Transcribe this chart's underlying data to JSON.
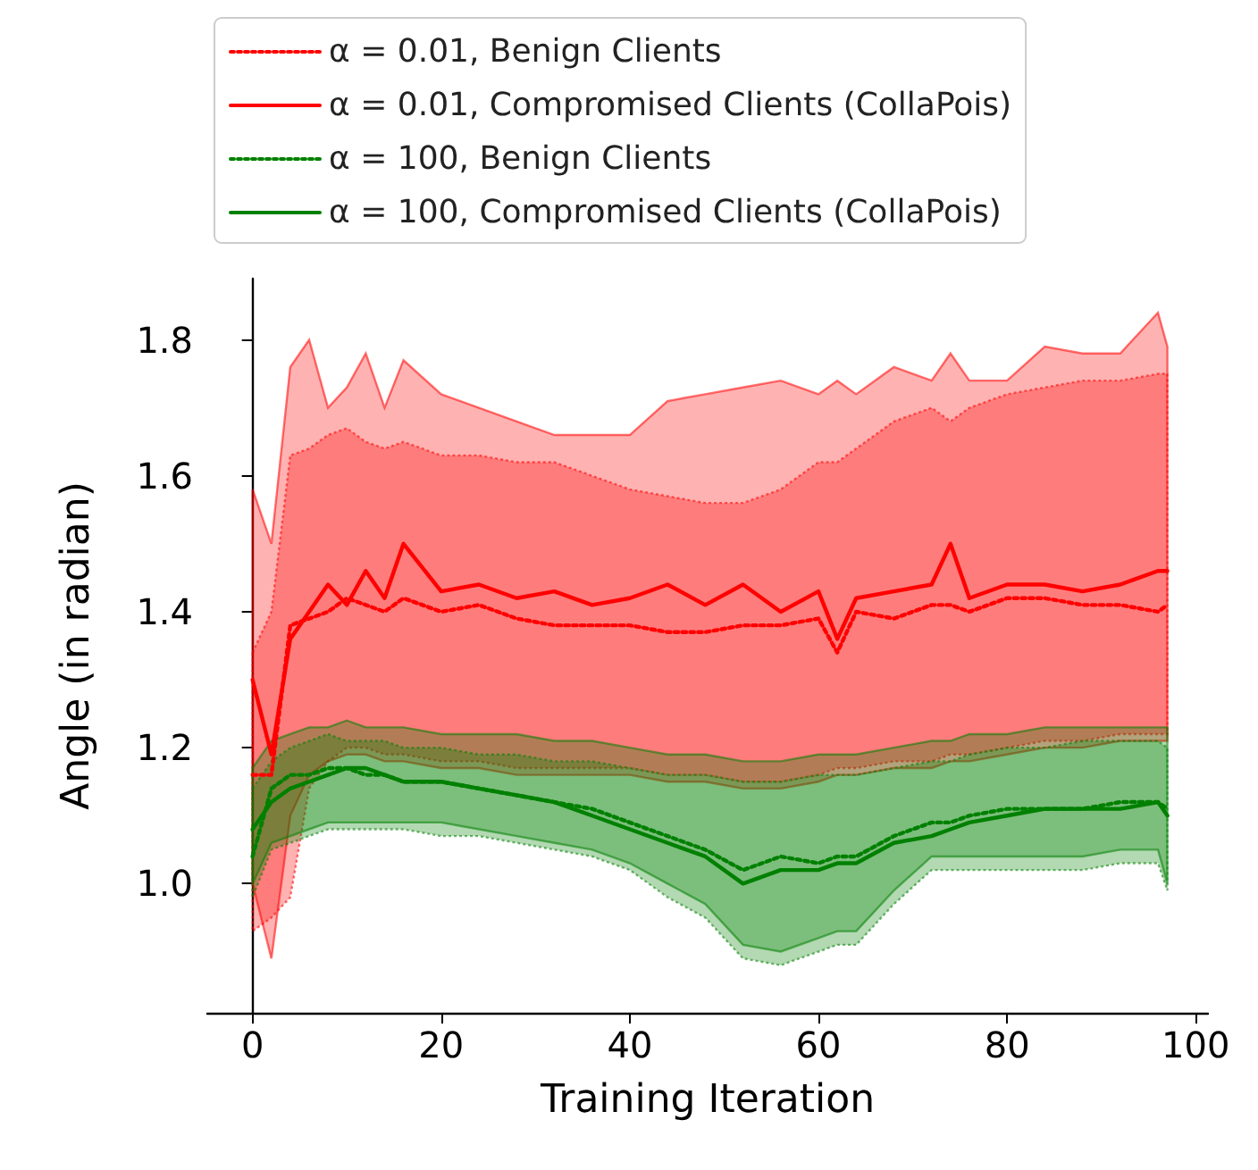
{
  "chart_data": {
    "type": "line",
    "xlabel": "Training Iteration",
    "ylabel": "Angle (in radian)",
    "x": [
      0,
      2,
      4,
      6,
      8,
      10,
      12,
      14,
      16,
      20,
      24,
      28,
      32,
      36,
      40,
      44,
      48,
      52,
      56,
      60,
      62,
      64,
      68,
      72,
      74,
      76,
      80,
      84,
      88,
      92,
      96,
      97
    ],
    "xlim": [
      -4.8,
      101.3
    ],
    "ylim": [
      0.81,
      1.89
    ],
    "xticks": [
      0,
      20,
      40,
      60,
      80,
      100
    ],
    "yticks": [
      {
        "value": 1,
        "label": "1.0"
      },
      1.2,
      1.4,
      1.6,
      1.8
    ],
    "grid": false,
    "legend": "top",
    "marker": "none",
    "series": [
      {
        "name": "α = 0.01, Benign Clients",
        "color": "#ff0000",
        "line_style": "dotted",
        "values": [
          1.16,
          1.16,
          1.38,
          1.39,
          1.4,
          1.42,
          1.41,
          1.4,
          1.42,
          1.4,
          1.41,
          1.39,
          1.38,
          1.38,
          1.38,
          1.37,
          1.37,
          1.38,
          1.38,
          1.39,
          1.34,
          1.4,
          1.39,
          1.41,
          1.41,
          1.4,
          1.42,
          1.42,
          1.41,
          1.41,
          1.4,
          1.41
        ],
        "lower": [
          0.93,
          0.95,
          0.98,
          1.14,
          1.18,
          1.2,
          1.2,
          1.19,
          1.19,
          1.18,
          1.18,
          1.17,
          1.17,
          1.17,
          1.17,
          1.16,
          1.16,
          1.15,
          1.15,
          1.16,
          1.17,
          1.17,
          1.18,
          1.18,
          1.19,
          1.19,
          1.2,
          1.21,
          1.21,
          1.22,
          1.22,
          1.22
        ],
        "upper": [
          1.34,
          1.4,
          1.63,
          1.64,
          1.66,
          1.67,
          1.65,
          1.64,
          1.65,
          1.63,
          1.63,
          1.62,
          1.62,
          1.6,
          1.58,
          1.57,
          1.56,
          1.56,
          1.58,
          1.62,
          1.62,
          1.64,
          1.68,
          1.7,
          1.68,
          1.7,
          1.72,
          1.73,
          1.74,
          1.74,
          1.75,
          1.75
        ]
      },
      {
        "name": "α = 0.01, Compromised Clients (CollaPois)",
        "color": "#ff0000",
        "line_style": "solid",
        "values": [
          1.3,
          1.19,
          1.36,
          1.4,
          1.44,
          1.41,
          1.46,
          1.42,
          1.5,
          1.43,
          1.44,
          1.42,
          1.43,
          1.41,
          1.42,
          1.44,
          1.41,
          1.44,
          1.4,
          1.43,
          1.36,
          1.42,
          1.43,
          1.44,
          1.5,
          1.42,
          1.44,
          1.44,
          1.43,
          1.44,
          1.46,
          1.46
        ],
        "lower": [
          1.0,
          0.89,
          1.1,
          1.16,
          1.18,
          1.19,
          1.19,
          1.18,
          1.18,
          1.17,
          1.17,
          1.16,
          1.16,
          1.16,
          1.16,
          1.15,
          1.15,
          1.14,
          1.14,
          1.15,
          1.16,
          1.16,
          1.17,
          1.17,
          1.18,
          1.18,
          1.19,
          1.2,
          1.2,
          1.21,
          1.21,
          1.21
        ],
        "upper": [
          1.58,
          1.5,
          1.76,
          1.8,
          1.7,
          1.73,
          1.78,
          1.7,
          1.77,
          1.72,
          1.7,
          1.68,
          1.66,
          1.66,
          1.66,
          1.71,
          1.72,
          1.73,
          1.74,
          1.72,
          1.74,
          1.72,
          1.76,
          1.74,
          1.78,
          1.74,
          1.74,
          1.79,
          1.78,
          1.78,
          1.84,
          1.79
        ]
      },
      {
        "name": "α = 100, Benign Clients",
        "color": "#008000",
        "line_style": "dotted",
        "values": [
          1.04,
          1.14,
          1.16,
          1.16,
          1.17,
          1.17,
          1.16,
          1.16,
          1.15,
          1.15,
          1.14,
          1.13,
          1.12,
          1.11,
          1.09,
          1.07,
          1.05,
          1.02,
          1.04,
          1.03,
          1.04,
          1.04,
          1.07,
          1.09,
          1.09,
          1.1,
          1.11,
          1.11,
          1.11,
          1.12,
          1.12,
          1.11
        ],
        "lower": [
          0.98,
          1.05,
          1.06,
          1.07,
          1.08,
          1.08,
          1.08,
          1.08,
          1.08,
          1.07,
          1.07,
          1.06,
          1.05,
          1.04,
          1.02,
          0.98,
          0.95,
          0.89,
          0.88,
          0.9,
          0.91,
          0.91,
          0.97,
          1.02,
          1.02,
          1.02,
          1.02,
          1.02,
          1.02,
          1.03,
          1.03,
          0.99
        ],
        "upper": [
          1.14,
          1.18,
          1.2,
          1.21,
          1.22,
          1.21,
          1.21,
          1.21,
          1.2,
          1.2,
          1.19,
          1.19,
          1.18,
          1.18,
          1.17,
          1.16,
          1.16,
          1.15,
          1.15,
          1.16,
          1.16,
          1.16,
          1.17,
          1.18,
          1.18,
          1.19,
          1.2,
          1.2,
          1.21,
          1.21,
          1.21,
          1.2
        ]
      },
      {
        "name": "α = 100, Compromised Clients (CollaPois)",
        "color": "#008000",
        "line_style": "solid",
        "values": [
          1.08,
          1.12,
          1.14,
          1.15,
          1.16,
          1.17,
          1.17,
          1.16,
          1.15,
          1.15,
          1.14,
          1.13,
          1.12,
          1.1,
          1.08,
          1.06,
          1.04,
          1.0,
          1.02,
          1.02,
          1.03,
          1.03,
          1.06,
          1.07,
          1.08,
          1.09,
          1.1,
          1.11,
          1.11,
          1.11,
          1.12,
          1.1
        ],
        "lower": [
          1.0,
          1.06,
          1.07,
          1.08,
          1.09,
          1.09,
          1.09,
          1.09,
          1.09,
          1.09,
          1.08,
          1.07,
          1.06,
          1.05,
          1.03,
          1.0,
          0.97,
          0.91,
          0.9,
          0.92,
          0.93,
          0.93,
          0.99,
          1.04,
          1.04,
          1.04,
          1.04,
          1.04,
          1.04,
          1.05,
          1.05,
          1.0
        ],
        "upper": [
          1.17,
          1.21,
          1.22,
          1.23,
          1.23,
          1.24,
          1.23,
          1.23,
          1.23,
          1.22,
          1.22,
          1.22,
          1.21,
          1.21,
          1.2,
          1.19,
          1.19,
          1.18,
          1.18,
          1.19,
          1.19,
          1.19,
          1.2,
          1.21,
          1.21,
          1.22,
          1.22,
          1.23,
          1.23,
          1.23,
          1.23,
          1.23
        ]
      }
    ]
  }
}
